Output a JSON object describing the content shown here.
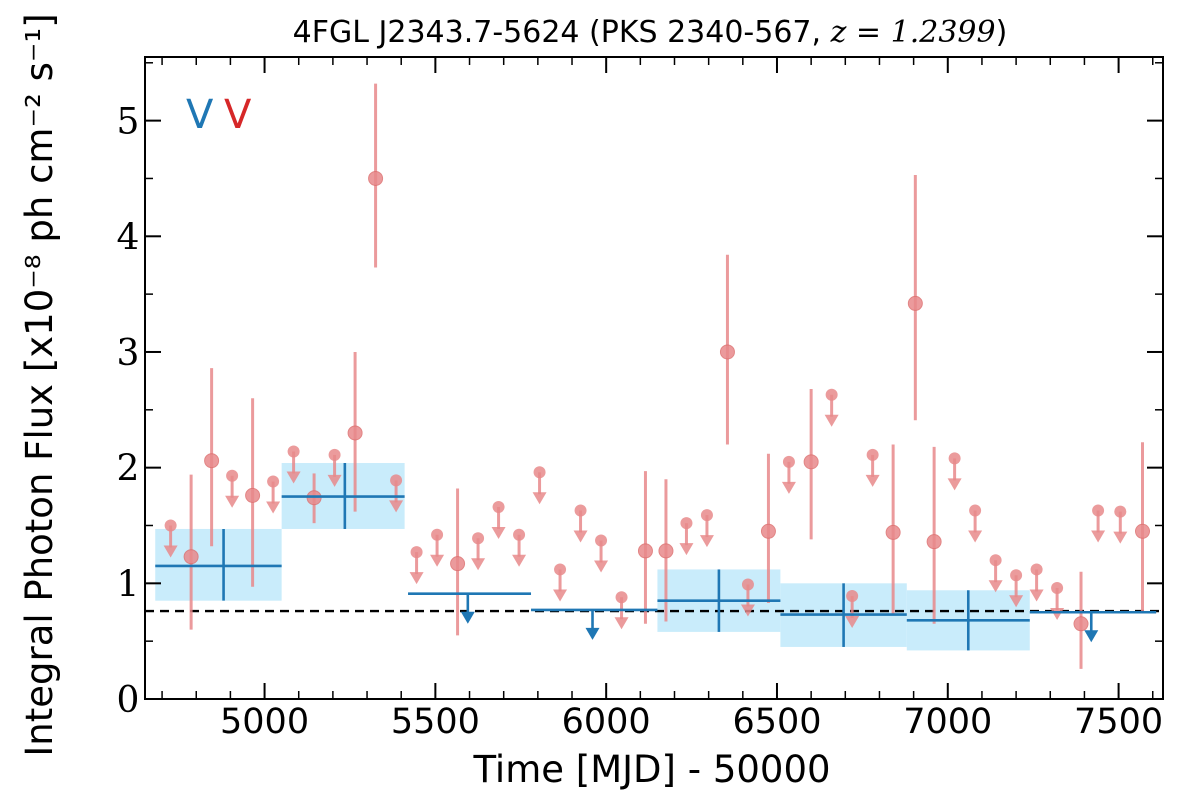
{
  "chart_data": {
    "type": "scatter",
    "title": "4FGL J2343.7-5624 (PKS 2340-567, ",
    "title_redshift": "z = 1.2399",
    "title_close": ")",
    "xlabel": "Time [MJD] - 50000",
    "ylabel": "Integral Photon Flux [x10⁻⁸ ph cm⁻² s⁻¹]",
    "xlim": [
      4650,
      7630
    ],
    "ylim": [
      0,
      5.55
    ],
    "xticks": [
      5000,
      5500,
      6000,
      6500,
      7000,
      7500
    ],
    "yticks": [
      0,
      1,
      2,
      3,
      4,
      5
    ],
    "grid": false,
    "legend_markers": [
      {
        "label": "V",
        "color": "#1f77b4"
      },
      {
        "label": "V",
        "color": "#d62728"
      }
    ],
    "reference_line": {
      "y": 0.76,
      "style": "dashed",
      "color": "#000000"
    },
    "series": [
      {
        "color": "#1f77b4",
        "band_color": "#c9ecfb",
        "detections": [
          {
            "x0": 4680,
            "x1": 5050,
            "xc": 4880,
            "y": 1.15,
            "ylo": 0.85,
            "yhi": 1.47
          },
          {
            "x0": 5050,
            "x1": 5410,
            "xc": 5235,
            "y": 1.75,
            "ylo": 1.47,
            "yhi": 2.04
          },
          {
            "x0": 6150,
            "x1": 6510,
            "xc": 6330,
            "y": 0.85,
            "ylo": 0.58,
            "yhi": 1.12
          },
          {
            "x0": 6510,
            "x1": 6880,
            "xc": 6695,
            "y": 0.73,
            "ylo": 0.45,
            "yhi": 1.0
          },
          {
            "x0": 6880,
            "x1": 7240,
            "xc": 7060,
            "y": 0.68,
            "ylo": 0.42,
            "yhi": 0.94
          }
        ],
        "upper_limits": [
          {
            "x0": 5420,
            "x1": 5780,
            "xc": 5595,
            "y": 0.91
          },
          {
            "x0": 5780,
            "x1": 6150,
            "xc": 5960,
            "y": 0.77
          },
          {
            "x0": 7240,
            "x1": 7610,
            "xc": 7420,
            "y": 0.75
          }
        ]
      },
      {
        "color": "#e8898b",
        "detections": [
          {
            "x": 4785,
            "y": 1.23,
            "ylo": 0.6,
            "yhi": 1.94
          },
          {
            "x": 4845,
            "y": 2.06,
            "ylo": 1.32,
            "yhi": 2.86
          },
          {
            "x": 4965,
            "y": 1.76,
            "ylo": 0.97,
            "yhi": 2.6
          },
          {
            "x": 5145,
            "y": 1.74,
            "ylo": 1.52,
            "yhi": 1.95
          },
          {
            "x": 5265,
            "y": 2.3,
            "ylo": 1.62,
            "yhi": 3.0
          },
          {
            "x": 5325,
            "y": 4.5,
            "ylo": 3.73,
            "yhi": 5.32
          },
          {
            "x": 5565,
            "y": 1.17,
            "ylo": 0.55,
            "yhi": 1.82
          },
          {
            "x": 6115,
            "y": 1.28,
            "ylo": 0.65,
            "yhi": 1.97
          },
          {
            "x": 6175,
            "y": 1.28,
            "ylo": 0.67,
            "yhi": 1.9
          },
          {
            "x": 6355,
            "y": 3.0,
            "ylo": 2.2,
            "yhi": 3.84
          },
          {
            "x": 6475,
            "y": 1.45,
            "ylo": 0.83,
            "yhi": 2.12
          },
          {
            "x": 6600,
            "y": 2.05,
            "ylo": 1.38,
            "yhi": 2.68
          },
          {
            "x": 6840,
            "y": 1.44,
            "ylo": 0.73,
            "yhi": 2.2
          },
          {
            "x": 6905,
            "y": 3.42,
            "ylo": 2.41,
            "yhi": 4.53
          },
          {
            "x": 6960,
            "y": 1.36,
            "ylo": 0.65,
            "yhi": 2.18
          },
          {
            "x": 7390,
            "y": 0.65,
            "ylo": 0.26,
            "yhi": 1.1
          },
          {
            "x": 7570,
            "y": 1.45,
            "ylo": 0.75,
            "yhi": 2.22
          }
        ],
        "upper_limits": [
          {
            "x": 4725,
            "y": 1.5
          },
          {
            "x": 4905,
            "y": 1.93
          },
          {
            "x": 5025,
            "y": 1.88
          },
          {
            "x": 5085,
            "y": 2.14
          },
          {
            "x": 5205,
            "y": 2.11
          },
          {
            "x": 5385,
            "y": 1.89
          },
          {
            "x": 5445,
            "y": 1.27
          },
          {
            "x": 5505,
            "y": 1.42
          },
          {
            "x": 5625,
            "y": 1.39
          },
          {
            "x": 5685,
            "y": 1.66
          },
          {
            "x": 5745,
            "y": 1.42
          },
          {
            "x": 5805,
            "y": 1.96
          },
          {
            "x": 5865,
            "y": 1.12
          },
          {
            "x": 5925,
            "y": 1.63
          },
          {
            "x": 5985,
            "y": 1.37
          },
          {
            "x": 6045,
            "y": 0.88
          },
          {
            "x": 6235,
            "y": 1.52
          },
          {
            "x": 6295,
            "y": 1.59
          },
          {
            "x": 6415,
            "y": 0.99
          },
          {
            "x": 6535,
            "y": 2.05
          },
          {
            "x": 6660,
            "y": 2.63
          },
          {
            "x": 6720,
            "y": 0.89
          },
          {
            "x": 6780,
            "y": 2.11
          },
          {
            "x": 7020,
            "y": 2.08
          },
          {
            "x": 7080,
            "y": 1.63
          },
          {
            "x": 7140,
            "y": 1.2
          },
          {
            "x": 7200,
            "y": 1.07
          },
          {
            "x": 7260,
            "y": 1.12
          },
          {
            "x": 7320,
            "y": 0.96
          },
          {
            "x": 7440,
            "y": 1.63
          },
          {
            "x": 7505,
            "y": 1.62
          }
        ]
      }
    ]
  }
}
